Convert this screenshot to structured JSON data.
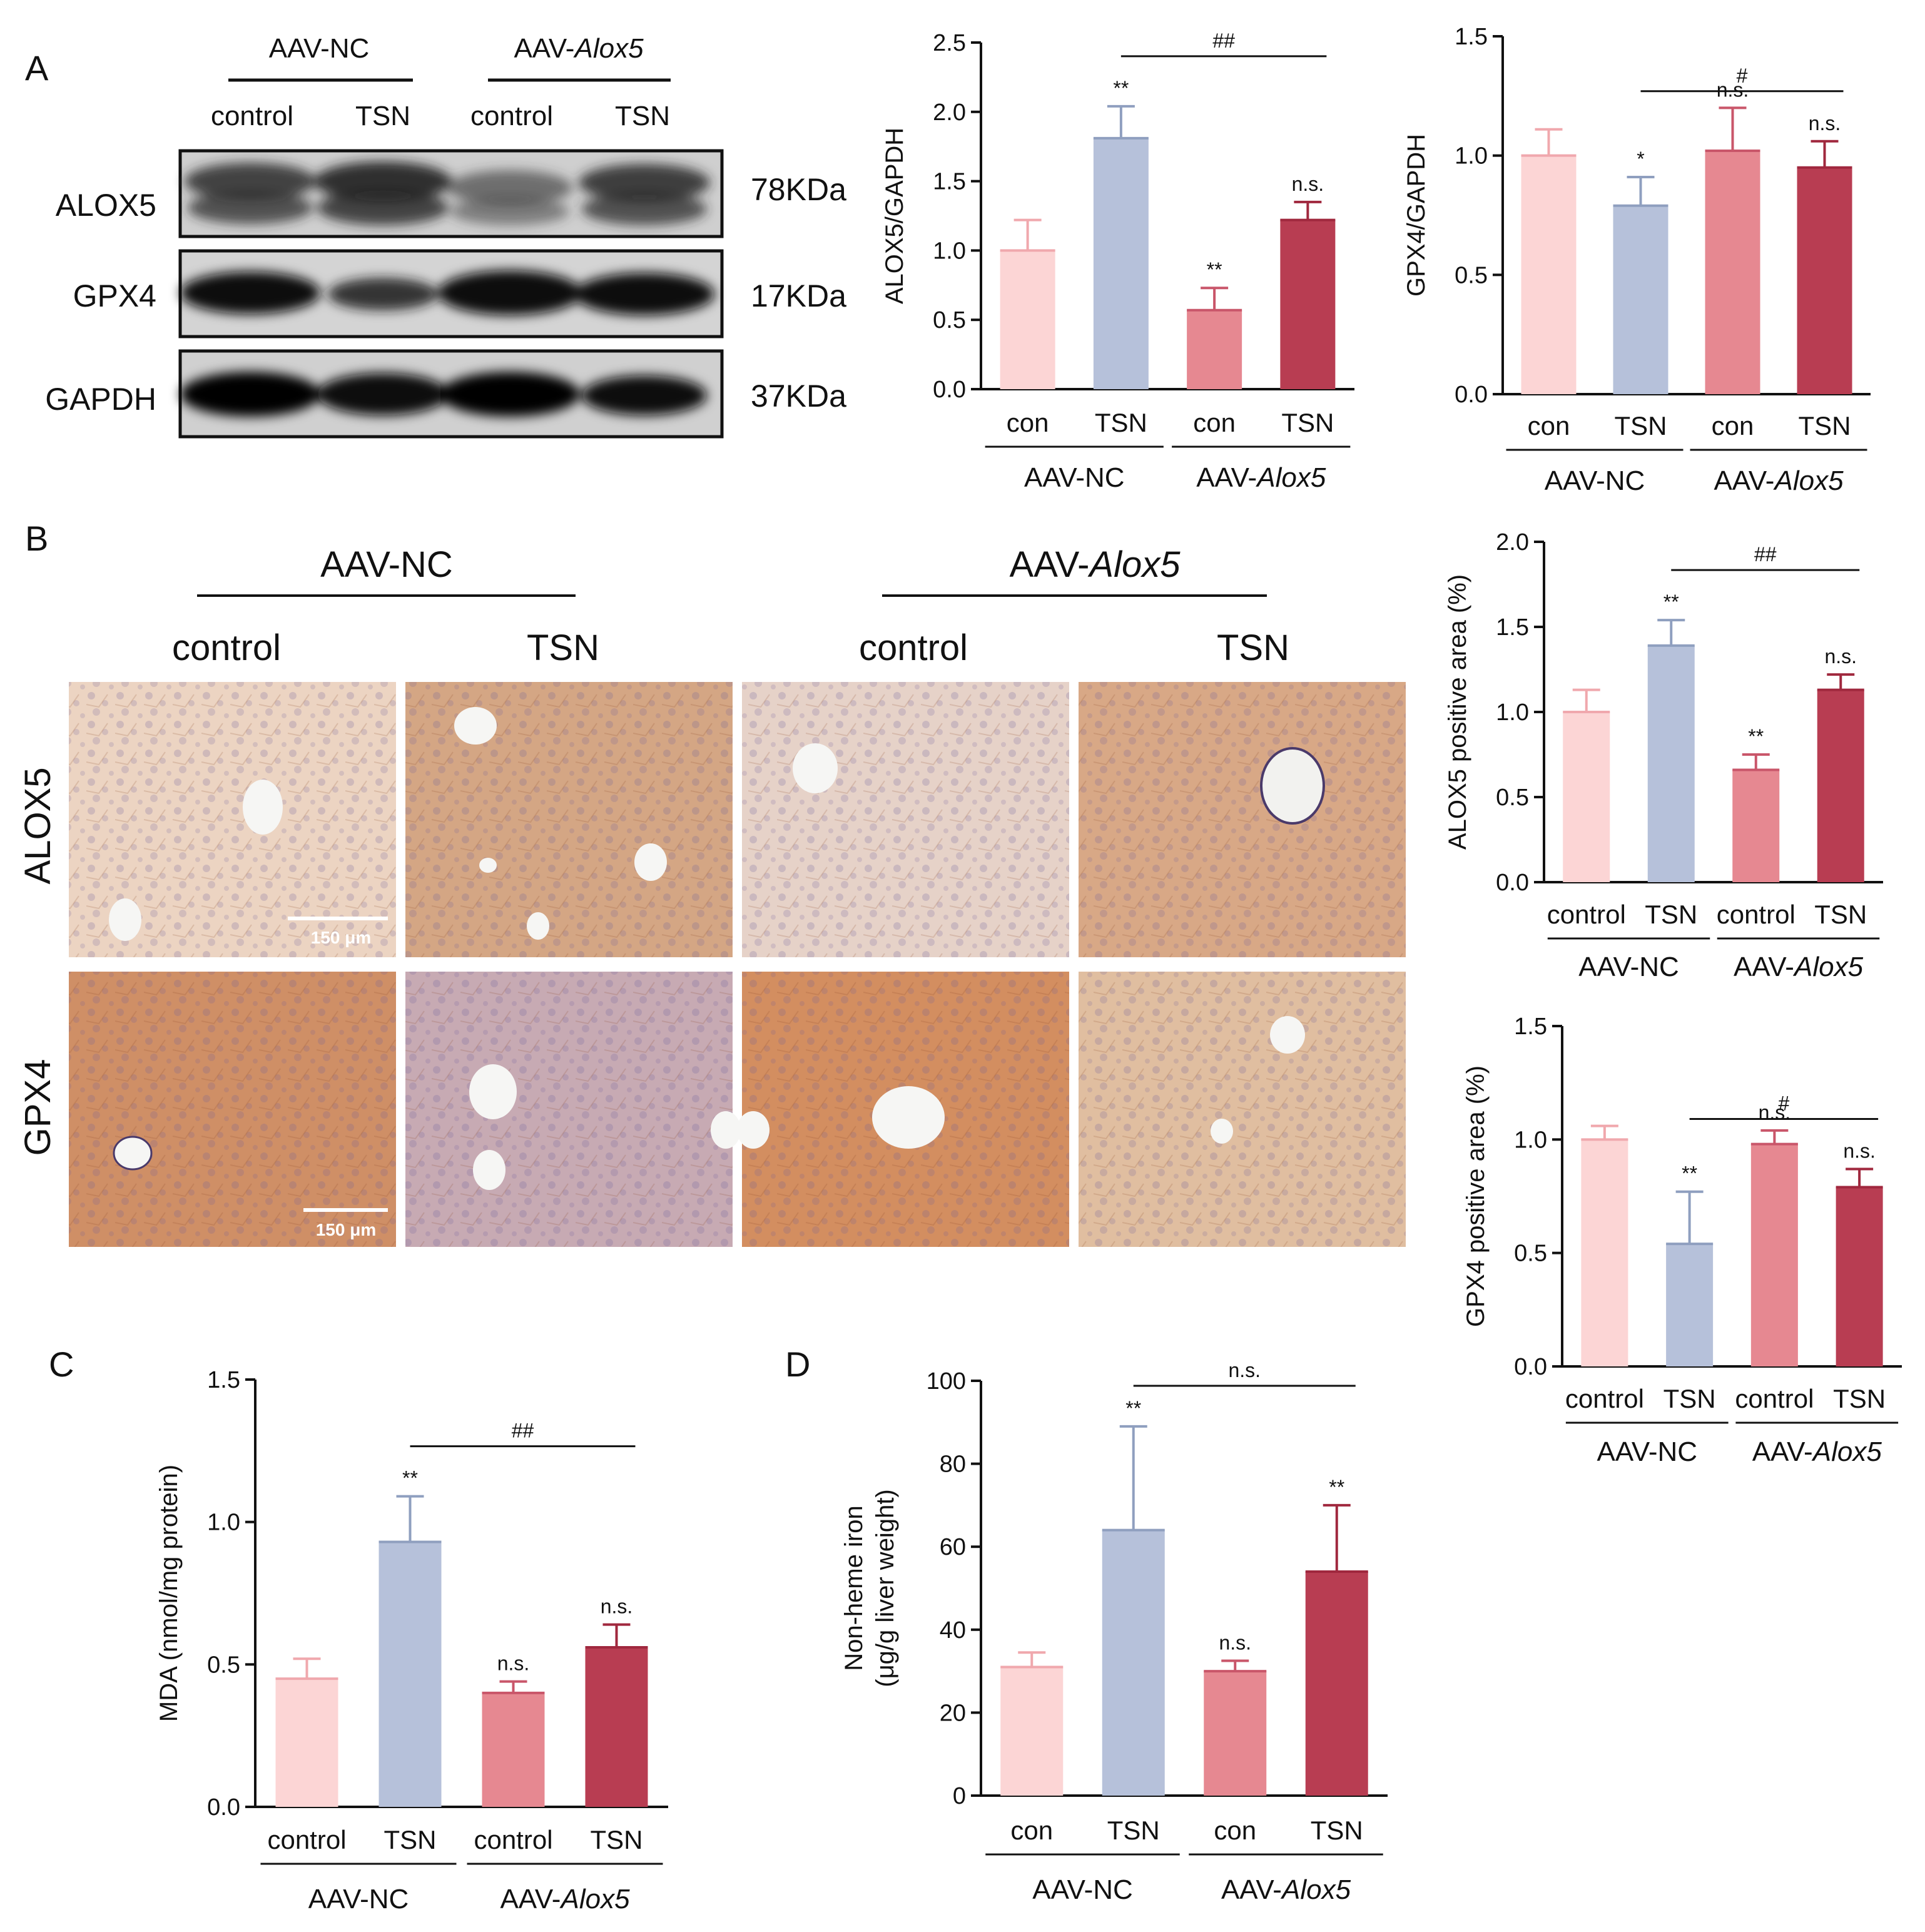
{
  "figure": {
    "panels": [
      "A",
      "B",
      "C",
      "D"
    ],
    "groups": [
      "AAV-NC",
      "AAV-Alox5"
    ],
    "group_label_nc": "AAV-NC",
    "group_label_alox_prefix": "AAV-",
    "group_label_alox_gene": "Alox5",
    "conditions_long": [
      "control",
      "TSN",
      "control",
      "TSN"
    ],
    "conditions_short": [
      "con",
      "TSN",
      "con",
      "TSN"
    ],
    "colors": [
      "#fcd5d5",
      "#b6c1da",
      "#e68891",
      "#b83d52"
    ],
    "error_colors": [
      "#f0a8ad",
      "#8f9fbf",
      "#c9566a",
      "#a0283e"
    ]
  },
  "western_blot": {
    "bands": [
      {
        "protein": "ALOX5",
        "size": "78KDa"
      },
      {
        "protein": "GPX4",
        "size": "17KDa"
      },
      {
        "protein": "GAPDH",
        "size": "37KDa"
      }
    ]
  },
  "ihc": {
    "rows": [
      "ALOX5",
      "GPX4"
    ],
    "scale_bar": "150 μm"
  },
  "chart_data": [
    {
      "type": "bar",
      "id": "alox5-gapdh",
      "panel": "A",
      "ylabel": "ALOX5/GAPDH",
      "ylim": [
        0,
        2.5
      ],
      "yticks": [
        0,
        0.5,
        1.0,
        1.5,
        2.0,
        2.5
      ],
      "tick_decimals": 1,
      "categories": [
        "con",
        "TSN",
        "con",
        "TSN"
      ],
      "values": [
        1.0,
        1.81,
        0.57,
        1.22
      ],
      "errors": [
        0.22,
        0.23,
        0.16,
        0.13
      ],
      "annotations": [
        "",
        "**",
        "**",
        "n.s."
      ],
      "bracket": {
        "from": 1,
        "to": 3,
        "label": "##"
      }
    },
    {
      "type": "bar",
      "id": "gpx4-gapdh",
      "panel": "A",
      "ylabel": "GPX4/GAPDH",
      "ylim": [
        0,
        1.5
      ],
      "yticks": [
        0,
        0.5,
        1.0,
        1.5
      ],
      "tick_decimals": 1,
      "categories": [
        "con",
        "TSN",
        "con",
        "TSN"
      ],
      "values": [
        1.0,
        0.79,
        1.02,
        0.95
      ],
      "errors": [
        0.11,
        0.12,
        0.18,
        0.11
      ],
      "annotations": [
        "",
        "*",
        "n.s.",
        "n.s."
      ],
      "bracket": {
        "from": 1,
        "to": 3,
        "label": "#"
      }
    },
    {
      "type": "bar",
      "id": "alox5-area",
      "panel": "B",
      "ylabel": "ALOX5 positive  area (%)",
      "ylim": [
        0,
        2.0
      ],
      "yticks": [
        0,
        0.5,
        1.0,
        1.5,
        2.0
      ],
      "tick_decimals": 1,
      "categories": [
        "control",
        "TSN",
        "control",
        "TSN"
      ],
      "values": [
        1.0,
        1.39,
        0.66,
        1.13
      ],
      "errors": [
        0.13,
        0.15,
        0.09,
        0.09
      ],
      "annotations": [
        "",
        "**",
        "**",
        "n.s."
      ],
      "bracket": {
        "from": 1,
        "to": 3,
        "label": "##"
      }
    },
    {
      "type": "bar",
      "id": "gpx4-area",
      "panel": "B",
      "ylabel": "GPX4 positive  area (%)",
      "ylim": [
        0,
        1.5
      ],
      "yticks": [
        0,
        0.5,
        1.0,
        1.5
      ],
      "tick_decimals": 1,
      "categories": [
        "control",
        "TSN",
        "control",
        "TSN"
      ],
      "values": [
        1.0,
        0.54,
        0.98,
        0.79
      ],
      "errors": [
        0.06,
        0.23,
        0.06,
        0.08
      ],
      "annotations": [
        "",
        "**",
        "n.s.",
        "n.s."
      ],
      "bracket": {
        "from": 1,
        "to": 3,
        "label": "#"
      }
    },
    {
      "type": "bar",
      "id": "mda",
      "panel": "C",
      "ylabel": "MDA (nmol/mg protein)",
      "ylim": [
        0,
        1.5
      ],
      "yticks": [
        0,
        0.5,
        1.0,
        1.5
      ],
      "tick_decimals": 1,
      "categories": [
        "control",
        "TSN",
        "control",
        "TSN"
      ],
      "values": [
        0.45,
        0.93,
        0.4,
        0.56
      ],
      "errors": [
        0.07,
        0.16,
        0.04,
        0.08
      ],
      "annotations": [
        "",
        "**",
        "n.s.",
        "n.s."
      ],
      "bracket": {
        "from": 1,
        "to": 3,
        "label": "##"
      }
    },
    {
      "type": "bar",
      "id": "iron",
      "panel": "D",
      "ylabel": [
        "Non-heme iron",
        "(μg/g liver weight)"
      ],
      "ylim": [
        0,
        100
      ],
      "yticks": [
        0,
        20,
        40,
        60,
        80,
        100
      ],
      "tick_decimals": 0,
      "categories": [
        "con",
        "TSN",
        "con",
        "TSN"
      ],
      "values": [
        31,
        64,
        30,
        54
      ],
      "errors": [
        3.5,
        25,
        2.5,
        16
      ],
      "annotations": [
        "",
        "**",
        "n.s.",
        "**"
      ],
      "bracket": {
        "from": 1,
        "to": 3,
        "label": "n.s."
      }
    }
  ]
}
